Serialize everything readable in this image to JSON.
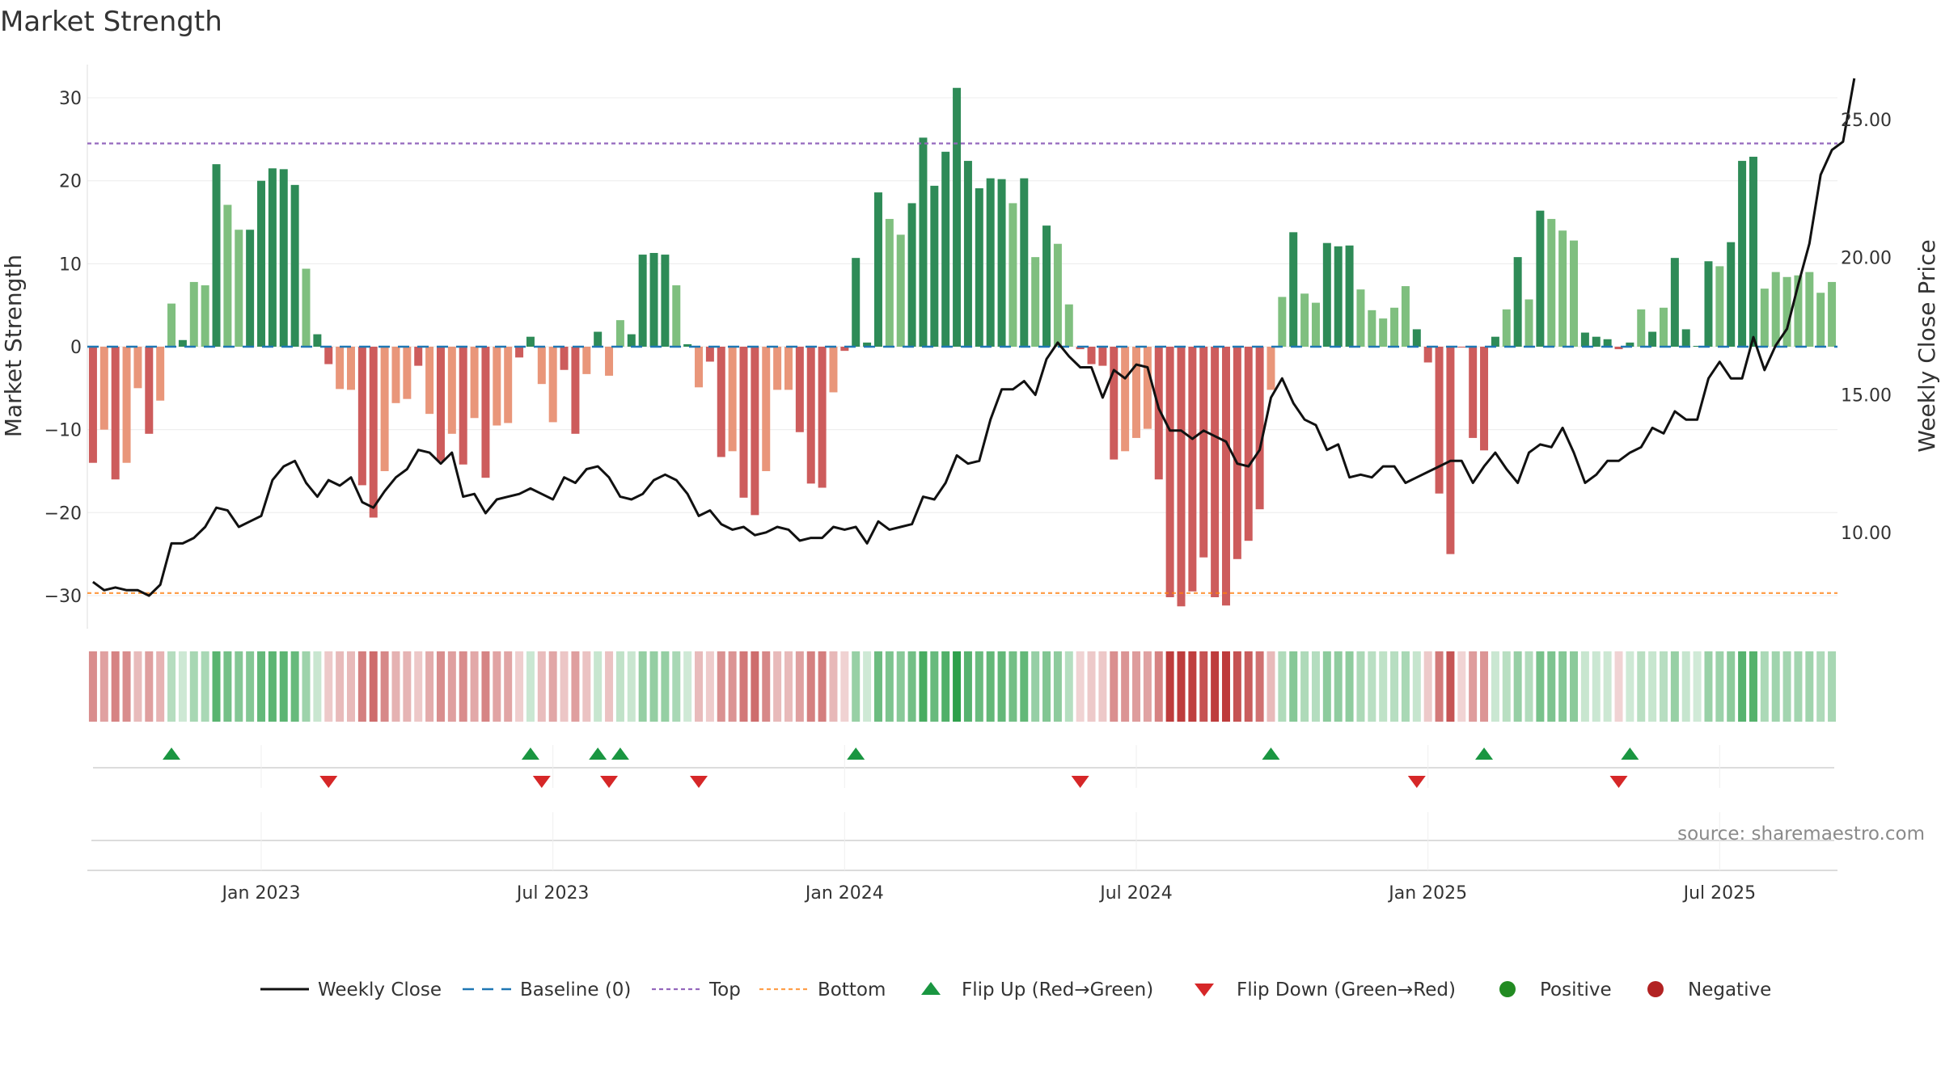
{
  "chart_data": {
    "type": "bar+line",
    "title": "Market Strength",
    "ylabel_left": "Market Strength",
    "ylabel_right": "Weekly Close Price",
    "left_ylim": [
      -34,
      34
    ],
    "left_ticks": [
      30,
      20,
      10,
      0,
      -10,
      -20,
      -30
    ],
    "left_tick_labels": [
      "30",
      "20",
      "10",
      "0",
      "−10",
      "−20",
      "−30"
    ],
    "right_ylim": [
      6.5,
      27
    ],
    "right_ticks": [
      10,
      15,
      20,
      25
    ],
    "right_tick_labels": [
      "10.00",
      "15.00",
      "20.00",
      "25.00"
    ],
    "top_line": 24.5,
    "bottom_line": -29.7,
    "baseline": 0,
    "x_tick_labels": [
      "Jan 2023",
      "Jul 2023",
      "Jan 2024",
      "Jul 2024",
      "Jan 2025",
      "Jul 2025"
    ],
    "x_tick_weeks": [
      15,
      41,
      67,
      93,
      119,
      145
    ],
    "strength": [
      -14,
      -10,
      -16,
      -14,
      -5,
      -10.5,
      -6.5,
      5.2,
      0.8,
      7.8,
      7.4,
      22,
      17.1,
      14.1,
      14.1,
      20,
      21.5,
      21.4,
      19.5,
      9.4,
      1.5,
      -2.1,
      -5.1,
      -5.2,
      -16.7,
      -20.6,
      -15,
      -6.8,
      -6.3,
      -2.3,
      -8.1,
      -13.8,
      -10.5,
      -14.2,
      -8.6,
      -15.8,
      -9.5,
      -9.2,
      -1.3,
      1.2,
      -4.5,
      -9.1,
      -2.8,
      -10.5,
      -3.3,
      1.8,
      -3.5,
      3.2,
      1.5,
      11.1,
      11.3,
      11.1,
      7.4,
      0.3,
      -4.9,
      -1.8,
      -13.3,
      -12.6,
      -18.2,
      -20.3,
      -15,
      -5.2,
      -5.2,
      -10.3,
      -16.5,
      -17,
      -5.5,
      -0.5,
      10.7,
      0.5,
      18.6,
      15.4,
      13.5,
      17.3,
      25.2,
      19.4,
      23.5,
      31.2,
      22.4,
      19.1,
      20.3,
      20.2,
      17.3,
      20.3,
      10.8,
      14.6,
      12.4,
      5.1,
      -0.3,
      -2.1,
      -2.3,
      -13.6,
      -12.6,
      -11,
      -9.9,
      -16,
      -30.2,
      -31.3,
      -29.5,
      -25.4,
      -30.2,
      -31.2,
      -25.6,
      -23.4,
      -19.6,
      -5.2,
      6,
      13.8,
      6.4,
      5.3,
      12.5,
      12.1,
      12.2,
      6.9,
      4.4,
      3.4,
      4.7,
      7.3,
      2.1,
      -1.9,
      -17.7,
      -25,
      -0.1,
      -11,
      -12.5,
      1.2,
      4.5,
      10.8,
      5.7,
      16.4,
      15.4,
      14,
      12.8,
      1.7,
      1.2,
      0.9,
      -0.3,
      0.5,
      4.5,
      1.8,
      4.7,
      10.7,
      2.1,
      0.1,
      10.3,
      9.7,
      12.6,
      22.4,
      22.9,
      7,
      9,
      8.4,
      8.6,
      9,
      6.5,
      7.8
    ],
    "close": [
      8.2,
      7.9,
      8,
      7.9,
      7.9,
      7.7,
      8.1,
      9.6,
      9.6,
      9.8,
      10.2,
      10.9,
      10.8,
      10.2,
      10.4,
      10.6,
      11.9,
      12.4,
      12.6,
      11.8,
      11.3,
      11.9,
      11.7,
      12,
      11.1,
      10.9,
      11.5,
      12,
      12.3,
      13.0,
      12.9,
      12.5,
      12.9,
      11.3,
      11.4,
      10.7,
      11.2,
      11.3,
      11.4,
      11.6,
      11.4,
      11.2,
      12.0,
      11.8,
      12.3,
      12.4,
      12.0,
      11.3,
      11.2,
      11.4,
      11.9,
      12.1,
      11.9,
      11.4,
      10.6,
      10.8,
      10.3,
      10.1,
      10.2,
      9.9,
      10.0,
      10.2,
      10.1,
      9.7,
      9.8,
      9.8,
      10.2,
      10.1,
      10.2,
      9.6,
      10.4,
      10.1,
      10.2,
      10.3,
      11.3,
      11.2,
      11.8,
      12.8,
      12.5,
      12.6,
      14.1,
      15.2,
      15.2,
      15.5,
      15,
      16.3,
      16.9,
      16.4,
      16,
      16,
      14.9,
      15.9,
      15.6,
      16.1,
      16,
      14.5,
      13.7,
      13.7,
      13.4,
      13.7,
      13.5,
      13.3,
      12.5,
      12.4,
      13.0,
      14.9,
      15.6,
      14.7,
      14.1,
      13.9,
      13.0,
      13.2,
      12.0,
      12.1,
      12.0,
      12.4,
      12.4,
      11.8,
      12.0,
      12.2,
      12.4,
      12.6,
      12.6,
      11.8,
      12.4,
      12.9,
      12.3,
      11.8,
      12.9,
      13.2,
      13.1,
      13.8,
      12.9,
      11.8,
      12.1,
      12.6,
      12.6,
      12.9,
      13.1,
      13.8,
      13.6,
      14.4,
      14.1,
      14.1,
      15.6,
      16.2,
      15.6,
      15.6,
      17.1,
      15.9,
      16.8,
      17.4,
      19,
      20.5,
      23.0,
      23.9,
      24.2,
      26.5
    ],
    "flip_up_weeks": [
      7,
      39,
      45,
      47,
      68,
      105,
      124,
      137
    ],
    "flip_down_weeks": [
      21,
      40,
      46,
      54,
      88,
      118,
      136
    ],
    "legend": [
      "Weekly Close",
      "Baseline (0)",
      "Top",
      "Bottom",
      "Flip Up (Red→Green)",
      "Flip Down (Green→Red)",
      "Positive",
      "Negative"
    ],
    "colors": {
      "strong_pos": "#2e8b57",
      "weak_pos": "#7fbf7f",
      "strong_neg": "#cd5c5c",
      "weak_neg": "#e9967a",
      "line": "#111111",
      "baseline": "#1f77b4",
      "top": "#9467bd",
      "bottom": "#ff7f0e",
      "flip_up": "#1a9641",
      "flip_down": "#d62728",
      "positive_dot": "#228b22",
      "negative_dot": "#b22222"
    }
  },
  "source": "source: sharemaestro.com"
}
